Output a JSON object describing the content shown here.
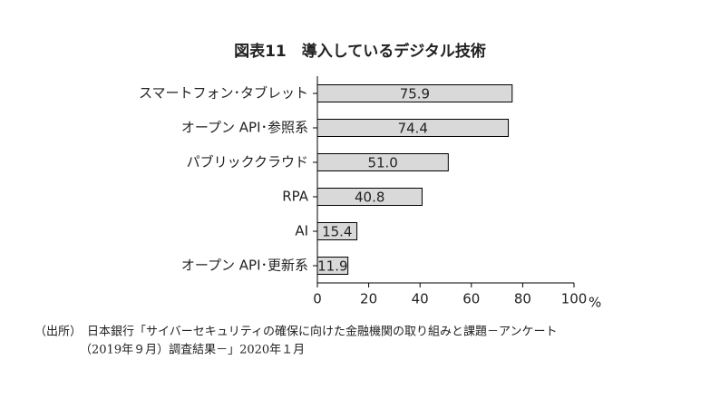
{
  "chart_data": {
    "type": "barh",
    "title": "図表11　導入しているデジタル技術",
    "categories": [
      "スマートフォン･タブレット",
      "オープン API･参照系",
      "パブリッククラウド",
      "RPA",
      "AI",
      "オープン API･更新系"
    ],
    "values": [
      75.9,
      74.4,
      51.0,
      40.8,
      15.4,
      11.9
    ],
    "value_labels": [
      "75.9",
      "74.4",
      "51.0",
      "40.8",
      "15.4",
      "11.9"
    ],
    "color": "#d9d9d9",
    "xlim": [
      0,
      100
    ],
    "xticks": [
      0,
      20,
      40,
      60,
      80,
      100
    ],
    "x_label": "%",
    "source_label": "（出所）",
    "note": [
      "日本銀行「サイバーセキュリティの確保に向けた金融機関の取り組みと課題－アンケート",
      "（2019年９月）調査結果－」2020年１月"
    ]
  }
}
